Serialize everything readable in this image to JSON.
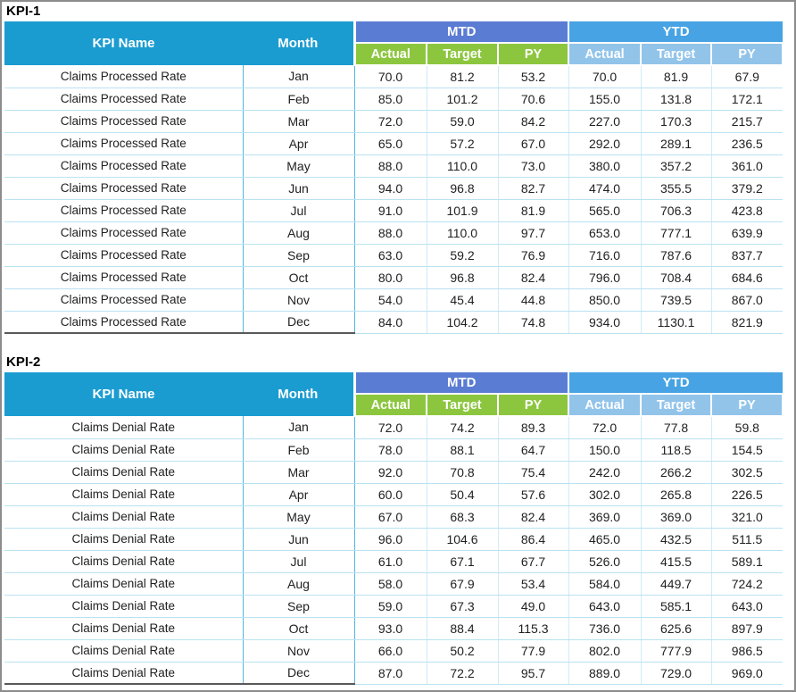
{
  "window": {
    "background": "#ffffff",
    "frame_border_color": "#8C8C8C"
  },
  "colors": {
    "header_teal": "#1B9CD1",
    "mtd_band_blue": "#5B7CD3",
    "ytd_band_blue": "#47A3E3",
    "mtd_subheader_green": "#8CC63F",
    "ytd_subheader_light_blue": "#92C4EA",
    "header_text": "#ffffff",
    "row_divider": "#B9E2F1",
    "column_divider": "#54B6DB",
    "table_end_border": "#595959"
  },
  "tables": [
    {
      "title": "KPI-1",
      "headers": {
        "kpi_name": "KPI Name",
        "month": "Month",
        "mtd": "MTD",
        "ytd": "YTD",
        "sub": [
          "Actual",
          "Target",
          "PY"
        ]
      },
      "rows": [
        {
          "kpi": "Claims Processed Rate",
          "month": "Jan",
          "mtd": [
            "70.0",
            "81.2",
            "53.2"
          ],
          "ytd": [
            "70.0",
            "81.9",
            "67.9"
          ]
        },
        {
          "kpi": "Claims Processed Rate",
          "month": "Feb",
          "mtd": [
            "85.0",
            "101.2",
            "70.6"
          ],
          "ytd": [
            "155.0",
            "131.8",
            "172.1"
          ]
        },
        {
          "kpi": "Claims Processed Rate",
          "month": "Mar",
          "mtd": [
            "72.0",
            "59.0",
            "84.2"
          ],
          "ytd": [
            "227.0",
            "170.3",
            "215.7"
          ]
        },
        {
          "kpi": "Claims Processed Rate",
          "month": "Apr",
          "mtd": [
            "65.0",
            "57.2",
            "67.0"
          ],
          "ytd": [
            "292.0",
            "289.1",
            "236.5"
          ]
        },
        {
          "kpi": "Claims Processed Rate",
          "month": "May",
          "mtd": [
            "88.0",
            "110.0",
            "73.0"
          ],
          "ytd": [
            "380.0",
            "357.2",
            "361.0"
          ]
        },
        {
          "kpi": "Claims Processed Rate",
          "month": "Jun",
          "mtd": [
            "94.0",
            "96.8",
            "82.7"
          ],
          "ytd": [
            "474.0",
            "355.5",
            "379.2"
          ]
        },
        {
          "kpi": "Claims Processed Rate",
          "month": "Jul",
          "mtd": [
            "91.0",
            "101.9",
            "81.9"
          ],
          "ytd": [
            "565.0",
            "706.3",
            "423.8"
          ]
        },
        {
          "kpi": "Claims Processed Rate",
          "month": "Aug",
          "mtd": [
            "88.0",
            "110.0",
            "97.7"
          ],
          "ytd": [
            "653.0",
            "777.1",
            "639.9"
          ]
        },
        {
          "kpi": "Claims Processed Rate",
          "month": "Sep",
          "mtd": [
            "63.0",
            "59.2",
            "76.9"
          ],
          "ytd": [
            "716.0",
            "787.6",
            "837.7"
          ]
        },
        {
          "kpi": "Claims Processed Rate",
          "month": "Oct",
          "mtd": [
            "80.0",
            "96.8",
            "82.4"
          ],
          "ytd": [
            "796.0",
            "708.4",
            "684.6"
          ]
        },
        {
          "kpi": "Claims Processed Rate",
          "month": "Nov",
          "mtd": [
            "54.0",
            "45.4",
            "44.8"
          ],
          "ytd": [
            "850.0",
            "739.5",
            "867.0"
          ]
        },
        {
          "kpi": "Claims Processed Rate",
          "month": "Dec",
          "mtd": [
            "84.0",
            "104.2",
            "74.8"
          ],
          "ytd": [
            "934.0",
            "1130.1",
            "821.9"
          ]
        }
      ]
    },
    {
      "title": "KPI-2",
      "headers": {
        "kpi_name": "KPI Name",
        "month": "Month",
        "mtd": "MTD",
        "ytd": "YTD",
        "sub": [
          "Actual",
          "Target",
          "PY"
        ]
      },
      "rows": [
        {
          "kpi": "Claims Denial Rate",
          "month": "Jan",
          "mtd": [
            "72.0",
            "74.2",
            "89.3"
          ],
          "ytd": [
            "72.0",
            "77.8",
            "59.8"
          ]
        },
        {
          "kpi": "Claims Denial Rate",
          "month": "Feb",
          "mtd": [
            "78.0",
            "88.1",
            "64.7"
          ],
          "ytd": [
            "150.0",
            "118.5",
            "154.5"
          ]
        },
        {
          "kpi": "Claims Denial Rate",
          "month": "Mar",
          "mtd": [
            "92.0",
            "70.8",
            "75.4"
          ],
          "ytd": [
            "242.0",
            "266.2",
            "302.5"
          ]
        },
        {
          "kpi": "Claims Denial Rate",
          "month": "Apr",
          "mtd": [
            "60.0",
            "50.4",
            "57.6"
          ],
          "ytd": [
            "302.0",
            "265.8",
            "226.5"
          ]
        },
        {
          "kpi": "Claims Denial Rate",
          "month": "May",
          "mtd": [
            "67.0",
            "68.3",
            "82.4"
          ],
          "ytd": [
            "369.0",
            "369.0",
            "321.0"
          ]
        },
        {
          "kpi": "Claims Denial Rate",
          "month": "Jun",
          "mtd": [
            "96.0",
            "104.6",
            "86.4"
          ],
          "ytd": [
            "465.0",
            "432.5",
            "511.5"
          ]
        },
        {
          "kpi": "Claims Denial Rate",
          "month": "Jul",
          "mtd": [
            "61.0",
            "67.1",
            "67.7"
          ],
          "ytd": [
            "526.0",
            "415.5",
            "589.1"
          ]
        },
        {
          "kpi": "Claims Denial Rate",
          "month": "Aug",
          "mtd": [
            "58.0",
            "67.9",
            "53.4"
          ],
          "ytd": [
            "584.0",
            "449.7",
            "724.2"
          ]
        },
        {
          "kpi": "Claims Denial Rate",
          "month": "Sep",
          "mtd": [
            "59.0",
            "67.3",
            "49.0"
          ],
          "ytd": [
            "643.0",
            "585.1",
            "643.0"
          ]
        },
        {
          "kpi": "Claims Denial Rate",
          "month": "Oct",
          "mtd": [
            "93.0",
            "88.4",
            "115.3"
          ],
          "ytd": [
            "736.0",
            "625.6",
            "897.9"
          ]
        },
        {
          "kpi": "Claims Denial Rate",
          "month": "Nov",
          "mtd": [
            "66.0",
            "50.2",
            "77.9"
          ],
          "ytd": [
            "802.0",
            "777.9",
            "986.5"
          ]
        },
        {
          "kpi": "Claims Denial Rate",
          "month": "Dec",
          "mtd": [
            "87.0",
            "72.2",
            "95.7"
          ],
          "ytd": [
            "889.0",
            "729.0",
            "969.0"
          ]
        }
      ]
    }
  ]
}
